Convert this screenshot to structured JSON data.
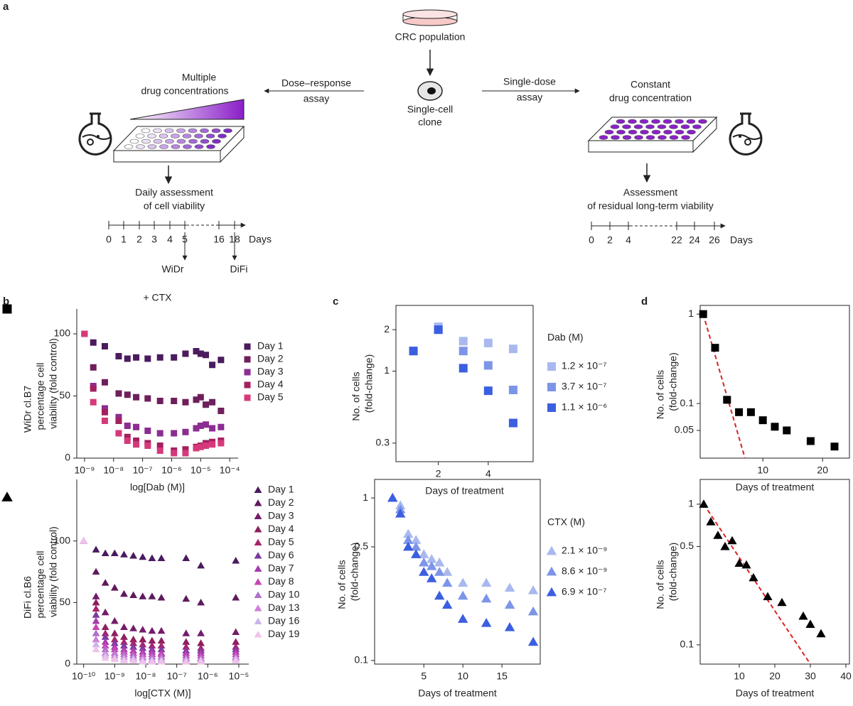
{
  "diagram": {
    "panel_label": "a",
    "source": "CRC population",
    "clone": [
      "Single-cell",
      "clone"
    ],
    "left_arrow": [
      "Dose–response",
      "assay"
    ],
    "right_arrow": [
      "Single-dose",
      "assay"
    ],
    "left_plate": [
      "Multiple",
      "drug concentrations"
    ],
    "right_plate": [
      "Constant",
      "drug concentration"
    ],
    "left_assessment": [
      "Daily assessment",
      "of cell viability"
    ],
    "right_assessment": [
      "Assessment",
      "of residual long-term viability"
    ],
    "left_timeline": {
      "ticks": [
        "0",
        "1",
        "2",
        "3",
        "4",
        "5",
        "16",
        "18"
      ],
      "unit": "Days",
      "markers": [
        "WiDr",
        "DiFi"
      ]
    },
    "right_timeline": {
      "ticks": [
        "0",
        "2",
        "4",
        "22",
        "24",
        "26"
      ],
      "unit": "Days"
    }
  },
  "panel_labels": [
    "b",
    "c",
    "d"
  ],
  "chart_data": [
    {
      "type": "scatter",
      "marker": "square",
      "title": "+ CTX",
      "ylabel": [
        "WiDr cl.B7",
        "percentage cell",
        "viability (fold control)"
      ],
      "xlabel": "log[Dab (M)]",
      "xscale": "log",
      "xlim": [
        5.4e-10,
        0.000195
      ],
      "xticks": [
        {
          "value": 1e-09,
          "label": "10⁻⁹"
        },
        {
          "value": 1e-08,
          "label": "10⁻⁸"
        },
        {
          "value": 1e-07,
          "label": "10⁻⁷"
        },
        {
          "value": 1e-06,
          "label": "10⁻⁶"
        },
        {
          "value": 1e-05,
          "label": "10⁻⁵"
        },
        {
          "value": 0.0001,
          "label": "10⁻⁴"
        }
      ],
      "ylim": [
        0,
        120
      ],
      "yticks": [
        0,
        50,
        100
      ],
      "x": [
        1e-09,
        2e-09,
        5e-09,
        1.5e-08,
        3e-08,
        6e-08,
        1.5e-07,
        4e-07,
        1.2e-06,
        3e-06,
        7e-06,
        1e-05,
        1.5e-05,
        2.5e-05,
        5e-05
      ],
      "series": [
        {
          "name": "Day 1",
          "color": "#4b1b5e",
          "values": [
            100,
            93,
            90,
            82,
            80,
            81,
            80,
            81,
            81,
            84,
            86,
            84,
            83,
            75,
            79
          ]
        },
        {
          "name": "Day 2",
          "color": "#6e1f5c",
          "values": [
            100,
            73,
            61,
            52,
            51,
            49,
            48,
            46,
            46,
            45,
            47,
            49,
            43,
            45,
            38
          ]
        },
        {
          "name": "Day 3",
          "color": "#8b2d91",
          "values": [
            100,
            58,
            40,
            33,
            26,
            25,
            22,
            20,
            20,
            21,
            24,
            26,
            27,
            24,
            25
          ]
        },
        {
          "name": "Day 4",
          "color": "#a4205f",
          "values": [
            100,
            56,
            37,
            30,
            17,
            14,
            12,
            10,
            6,
            7,
            9,
            10,
            12,
            13,
            14
          ]
        },
        {
          "name": "Day 5",
          "color": "#d6397a",
          "values": [
            100,
            45,
            30,
            20,
            14,
            11,
            10,
            6,
            4,
            4,
            8,
            9,
            10,
            11,
            12
          ]
        }
      ]
    },
    {
      "type": "scatter",
      "marker": "triangle",
      "ylabel": [
        "DiFi cl.B6",
        "percentage cell",
        "viability (fold control)"
      ],
      "xlabel": "log[CTX (M)]",
      "xscale": "log",
      "xlim": [
        6e-11,
        2.1e-05
      ],
      "xticks": [
        {
          "value": 1e-10,
          "label": "10⁻¹⁰"
        },
        {
          "value": 1e-09,
          "label": "10⁻⁹"
        },
        {
          "value": 1e-08,
          "label": "10⁻⁸"
        },
        {
          "value": 1e-07,
          "label": "10⁻⁷"
        },
        {
          "value": 1e-06,
          "label": "10⁻⁶"
        },
        {
          "value": 1e-05,
          "label": "10⁻⁵"
        }
      ],
      "ylim": [
        0,
        150
      ],
      "yticks": [
        0,
        50,
        100
      ],
      "x": [
        1e-10,
        2.5e-10,
        5e-10,
        1e-09,
        2e-09,
        4e-09,
        8e-09,
        1.6e-08,
        3.2e-08,
        2e-07,
        6e-07,
        8e-06
      ],
      "series": [
        {
          "name": "Day 1",
          "color": "#4a1a5f",
          "values": [
            100,
            93,
            90,
            90,
            89,
            88,
            87,
            86,
            86,
            86,
            80,
            84
          ]
        },
        {
          "name": "Day 2",
          "color": "#5e1a5d",
          "values": [
            100,
            75,
            66,
            62,
            57,
            56,
            55,
            55,
            54,
            53,
            50,
            54
          ]
        },
        {
          "name": "Day 3",
          "color": "#741c6b",
          "values": [
            100,
            55,
            42,
            35,
            30,
            29,
            28,
            27,
            27,
            25,
            25,
            26
          ]
        },
        {
          "name": "Day 4",
          "color": "#8d1f5e",
          "values": [
            100,
            50,
            30,
            25,
            22,
            20,
            20,
            19,
            19,
            18,
            17,
            18
          ]
        },
        {
          "name": "Day 5",
          "color": "#a8236b",
          "values": [
            100,
            45,
            25,
            20,
            18,
            17,
            16,
            15,
            15,
            14,
            13,
            14
          ]
        },
        {
          "name": "Day 6",
          "color": "#7a3aa0",
          "values": [
            100,
            40,
            22,
            17,
            15,
            14,
            13,
            12,
            12,
            11,
            11,
            12
          ]
        },
        {
          "name": "Day 7",
          "color": "#a83bb0",
          "values": [
            100,
            35,
            18,
            14,
            12,
            11,
            10,
            10,
            9,
            9,
            9,
            10
          ]
        },
        {
          "name": "Day 8",
          "color": "#c645b5",
          "values": [
            100,
            30,
            15,
            12,
            10,
            9,
            8,
            8,
            8,
            7,
            7,
            8
          ]
        },
        {
          "name": "Day 10",
          "color": "#b070c8",
          "values": [
            100,
            25,
            12,
            9,
            8,
            7,
            6,
            6,
            6,
            5,
            5,
            6
          ]
        },
        {
          "name": "Day 13",
          "color": "#cf7ed8",
          "values": [
            100,
            20,
            9,
            7,
            6,
            5,
            5,
            4,
            4,
            4,
            4,
            5
          ]
        },
        {
          "name": "Day 16",
          "color": "#c9b5ea",
          "values": [
            100,
            16,
            7,
            5,
            4,
            4,
            3,
            3,
            3,
            3,
            3,
            4
          ]
        },
        {
          "name": "Day 19",
          "color": "#f0c2ea",
          "values": [
            100,
            12,
            5,
            4,
            3,
            3,
            2,
            2,
            2,
            2,
            2,
            3
          ]
        }
      ]
    },
    {
      "type": "scatter",
      "marker": "square",
      "legend_title": "Dab (M)",
      "ylabel": [
        "No. of cells",
        "(fold-change)"
      ],
      "xlabel": "Days of treatment",
      "xlim": [
        0.3,
        5.8
      ],
      "xticks": [
        2,
        4
      ],
      "yscale": "log",
      "ylim": [
        0.22,
        3.0
      ],
      "yticks": [
        0.3,
        1,
        2
      ],
      "x": [
        1,
        2,
        3,
        4,
        5
      ],
      "series": [
        {
          "name": "1.2 × 10⁻⁷",
          "color": "#a9b9ef",
          "values": [
            1.4,
            2.1,
            1.65,
            1.6,
            1.45
          ]
        },
        {
          "name": "3.7 × 10⁻⁷",
          "color": "#7d95e8",
          "values": [
            1.4,
            2.0,
            1.4,
            1.1,
            0.73
          ]
        },
        {
          "name": "1.1 × 10⁻⁶",
          "color": "#3b5fe0",
          "values": [
            1.4,
            2.0,
            1.05,
            0.72,
            0.42
          ]
        }
      ]
    },
    {
      "type": "scatter",
      "marker": "triangle",
      "legend_title": "CTX (M)",
      "ylabel": [
        "No. of cells",
        "(fold-change)"
      ],
      "xlabel": "Days of treatment",
      "xlim": [
        -1.3,
        19.9
      ],
      "xticks": [
        5,
        10,
        15
      ],
      "yscale": "log",
      "ylim": [
        0.095,
        1.3
      ],
      "yticks": [
        0.1,
        0.5,
        1
      ],
      "x": [
        1,
        2,
        3,
        4,
        5,
        6,
        7,
        8,
        10,
        13,
        16,
        19
      ],
      "series": [
        {
          "name": "2.1 × 10⁻⁹",
          "color": "#a9b9ef",
          "values": [
            1,
            0.9,
            0.6,
            0.55,
            0.45,
            0.42,
            0.4,
            0.35,
            0.3,
            0.3,
            0.28,
            0.27
          ]
        },
        {
          "name": "8.6 × 10⁻⁹",
          "color": "#7d95e8",
          "values": [
            1,
            0.85,
            0.55,
            0.5,
            0.4,
            0.38,
            0.35,
            0.3,
            0.25,
            0.24,
            0.22,
            0.2
          ]
        },
        {
          "name": "6.9 × 10⁻⁷",
          "color": "#3b5fe0",
          "values": [
            1,
            0.8,
            0.5,
            0.45,
            0.35,
            0.32,
            0.25,
            0.22,
            0.18,
            0.17,
            0.16,
            0.13
          ]
        }
      ]
    },
    {
      "type": "scatter",
      "marker": "square",
      "ylabel": [
        "No. of cells",
        "(fold-change)"
      ],
      "xlabel": "Days of treatment",
      "xlim": [
        -0.5,
        24.5
      ],
      "xticks": [
        10,
        20
      ],
      "yscale": "log",
      "ylim": [
        0.0245,
        1.25
      ],
      "yticks": [
        0.05,
        0.1,
        1
      ],
      "x": [
        0,
        2,
        4,
        6,
        8,
        10,
        12,
        14,
        18,
        22
      ],
      "color": "#000000",
      "values": [
        1,
        0.42,
        0.11,
        0.08,
        0.08,
        0.065,
        0.055,
        0.05,
        0.038,
        0.033
      ],
      "fit": {
        "color": "#e02020",
        "x": [
          0,
          7
        ],
        "values": [
          1,
          0.0245
        ]
      }
    },
    {
      "type": "scatter",
      "marker": "triangle",
      "ylabel": [
        "No. of cells",
        "(fold-change)"
      ],
      "xlabel": "Days of treatment",
      "xlim": [
        -1,
        41
      ],
      "xticks": [
        10,
        20,
        30,
        40
      ],
      "yscale": "log",
      "ylim": [
        0.073,
        1.5
      ],
      "yticks": [
        0.1,
        0.5,
        1
      ],
      "x": [
        0,
        2,
        4,
        6,
        8,
        10,
        12,
        14,
        18,
        22,
        28,
        30,
        33
      ],
      "color": "#000000",
      "values": [
        1,
        0.75,
        0.6,
        0.5,
        0.55,
        0.38,
        0.37,
        0.3,
        0.22,
        0.2,
        0.16,
        0.14,
        0.12
      ],
      "fit": {
        "color": "#e02020",
        "x": [
          0,
          30
        ],
        "values": [
          1,
          0.073
        ]
      }
    }
  ]
}
